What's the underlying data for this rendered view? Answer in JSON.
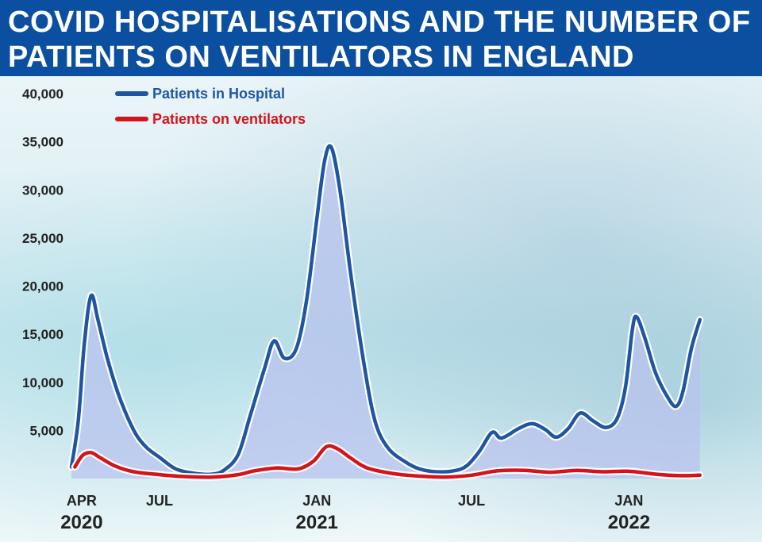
{
  "header": {
    "title": "COVID HOSPITALISATIONS AND THE NUMBER OF PATIENTS ON VENTILATORS IN ENGLAND"
  },
  "colors": {
    "header_bg": "#0b4fa0",
    "hospital_line": "#1f56a3",
    "hospital_fill": "#b8c3ee",
    "ventilator_line": "#d4141a"
  },
  "chart_data": {
    "type": "line",
    "title": "COVID HOSPITALISATIONS AND THE NUMBER OF PATIENTS ON VENTILATORS IN ENGLAND",
    "xlabel": "",
    "ylabel": "",
    "ylim": [
      0,
      40000
    ],
    "xlim": [
      "2020-03-20",
      "2022-03-28"
    ],
    "yticks": [
      {
        "value": 5000,
        "label": "5,000"
      },
      {
        "value": 10000,
        "label": "10,000"
      },
      {
        "value": 15000,
        "label": "15,000"
      },
      {
        "value": 20000,
        "label": "20,000"
      },
      {
        "value": 25000,
        "label": "25,000"
      },
      {
        "value": 30000,
        "label": "30,000"
      },
      {
        "value": 35000,
        "label": "35,000"
      },
      {
        "value": 40000,
        "label": "40,000"
      }
    ],
    "xticks": [
      {
        "date": "2020-04-01",
        "label": "APR",
        "year": "2020"
      },
      {
        "date": "2020-07-01",
        "label": "JUL",
        "year": ""
      },
      {
        "date": "2021-01-01",
        "label": "JAN",
        "year": "2021"
      },
      {
        "date": "2021-07-01",
        "label": "JUL",
        "year": ""
      },
      {
        "date": "2022-01-01",
        "label": "JAN",
        "year": "2022"
      }
    ],
    "grid": false,
    "legend": "top-left",
    "series": [
      {
        "name": "Patients in Hospital",
        "color": "#1f56a3",
        "filled": true,
        "points": [
          [
            "2020-03-20",
            1200
          ],
          [
            "2020-03-28",
            6000
          ],
          [
            "2020-04-04",
            14000
          ],
          [
            "2020-04-12",
            19000
          ],
          [
            "2020-04-20",
            16500
          ],
          [
            "2020-05-01",
            12500
          ],
          [
            "2020-05-15",
            8500
          ],
          [
            "2020-06-01",
            5000
          ],
          [
            "2020-06-15",
            3300
          ],
          [
            "2020-07-01",
            2200
          ],
          [
            "2020-07-20",
            1000
          ],
          [
            "2020-08-10",
            550
          ],
          [
            "2020-09-01",
            450
          ],
          [
            "2020-09-15",
            900
          ],
          [
            "2020-10-01",
            2500
          ],
          [
            "2020-10-15",
            6500
          ],
          [
            "2020-11-01",
            11500
          ],
          [
            "2020-11-12",
            14300
          ],
          [
            "2020-11-24",
            12500
          ],
          [
            "2020-12-08",
            13500
          ],
          [
            "2020-12-20",
            18500
          ],
          [
            "2021-01-01",
            27000
          ],
          [
            "2021-01-10",
            33000
          ],
          [
            "2021-01-18",
            34400
          ],
          [
            "2021-01-28",
            30000
          ],
          [
            "2021-02-10",
            21000
          ],
          [
            "2021-02-25",
            12000
          ],
          [
            "2021-03-10",
            6000
          ],
          [
            "2021-03-25",
            3200
          ],
          [
            "2021-04-15",
            1700
          ],
          [
            "2021-05-01",
            1000
          ],
          [
            "2021-05-20",
            700
          ],
          [
            "2021-06-10",
            800
          ],
          [
            "2021-06-25",
            1300
          ],
          [
            "2021-07-10",
            2800
          ],
          [
            "2021-07-25",
            4800
          ],
          [
            "2021-08-05",
            4200
          ],
          [
            "2021-08-25",
            5200
          ],
          [
            "2021-09-10",
            5700
          ],
          [
            "2021-09-25",
            5100
          ],
          [
            "2021-10-08",
            4300
          ],
          [
            "2021-10-22",
            5200
          ],
          [
            "2021-11-05",
            6800
          ],
          [
            "2021-11-20",
            6000
          ],
          [
            "2021-12-05",
            5300
          ],
          [
            "2021-12-18",
            6200
          ],
          [
            "2021-12-28",
            9500
          ],
          [
            "2022-01-05",
            15500
          ],
          [
            "2022-01-10",
            16800
          ],
          [
            "2022-01-20",
            14500
          ],
          [
            "2022-02-01",
            11000
          ],
          [
            "2022-02-15",
            8500
          ],
          [
            "2022-02-25",
            7500
          ],
          [
            "2022-03-05",
            9000
          ],
          [
            "2022-03-15",
            13500
          ],
          [
            "2022-03-25",
            16500
          ]
        ]
      },
      {
        "name": "Patients on ventilators",
        "color": "#d4141a",
        "filled": false,
        "points": [
          [
            "2020-03-24",
            1200
          ],
          [
            "2020-04-02",
            2400
          ],
          [
            "2020-04-12",
            2700
          ],
          [
            "2020-04-22",
            2200
          ],
          [
            "2020-05-10",
            1300
          ],
          [
            "2020-06-01",
            700
          ],
          [
            "2020-07-01",
            400
          ],
          [
            "2020-08-01",
            200
          ],
          [
            "2020-09-01",
            150
          ],
          [
            "2020-10-01",
            400
          ],
          [
            "2020-10-20",
            800
          ],
          [
            "2020-11-15",
            1100
          ],
          [
            "2020-12-10",
            1000
          ],
          [
            "2020-12-28",
            1800
          ],
          [
            "2021-01-12",
            3300
          ],
          [
            "2021-01-25",
            3100
          ],
          [
            "2021-02-10",
            2100
          ],
          [
            "2021-03-01",
            1100
          ],
          [
            "2021-04-01",
            500
          ],
          [
            "2021-05-01",
            250
          ],
          [
            "2021-06-01",
            150
          ],
          [
            "2021-07-01",
            350
          ],
          [
            "2021-08-01",
            800
          ],
          [
            "2021-09-01",
            850
          ],
          [
            "2021-10-01",
            650
          ],
          [
            "2021-11-01",
            850
          ],
          [
            "2021-12-01",
            700
          ],
          [
            "2022-01-01",
            750
          ],
          [
            "2022-02-01",
            450
          ],
          [
            "2022-03-01",
            300
          ],
          [
            "2022-03-25",
            350
          ]
        ]
      }
    ]
  }
}
